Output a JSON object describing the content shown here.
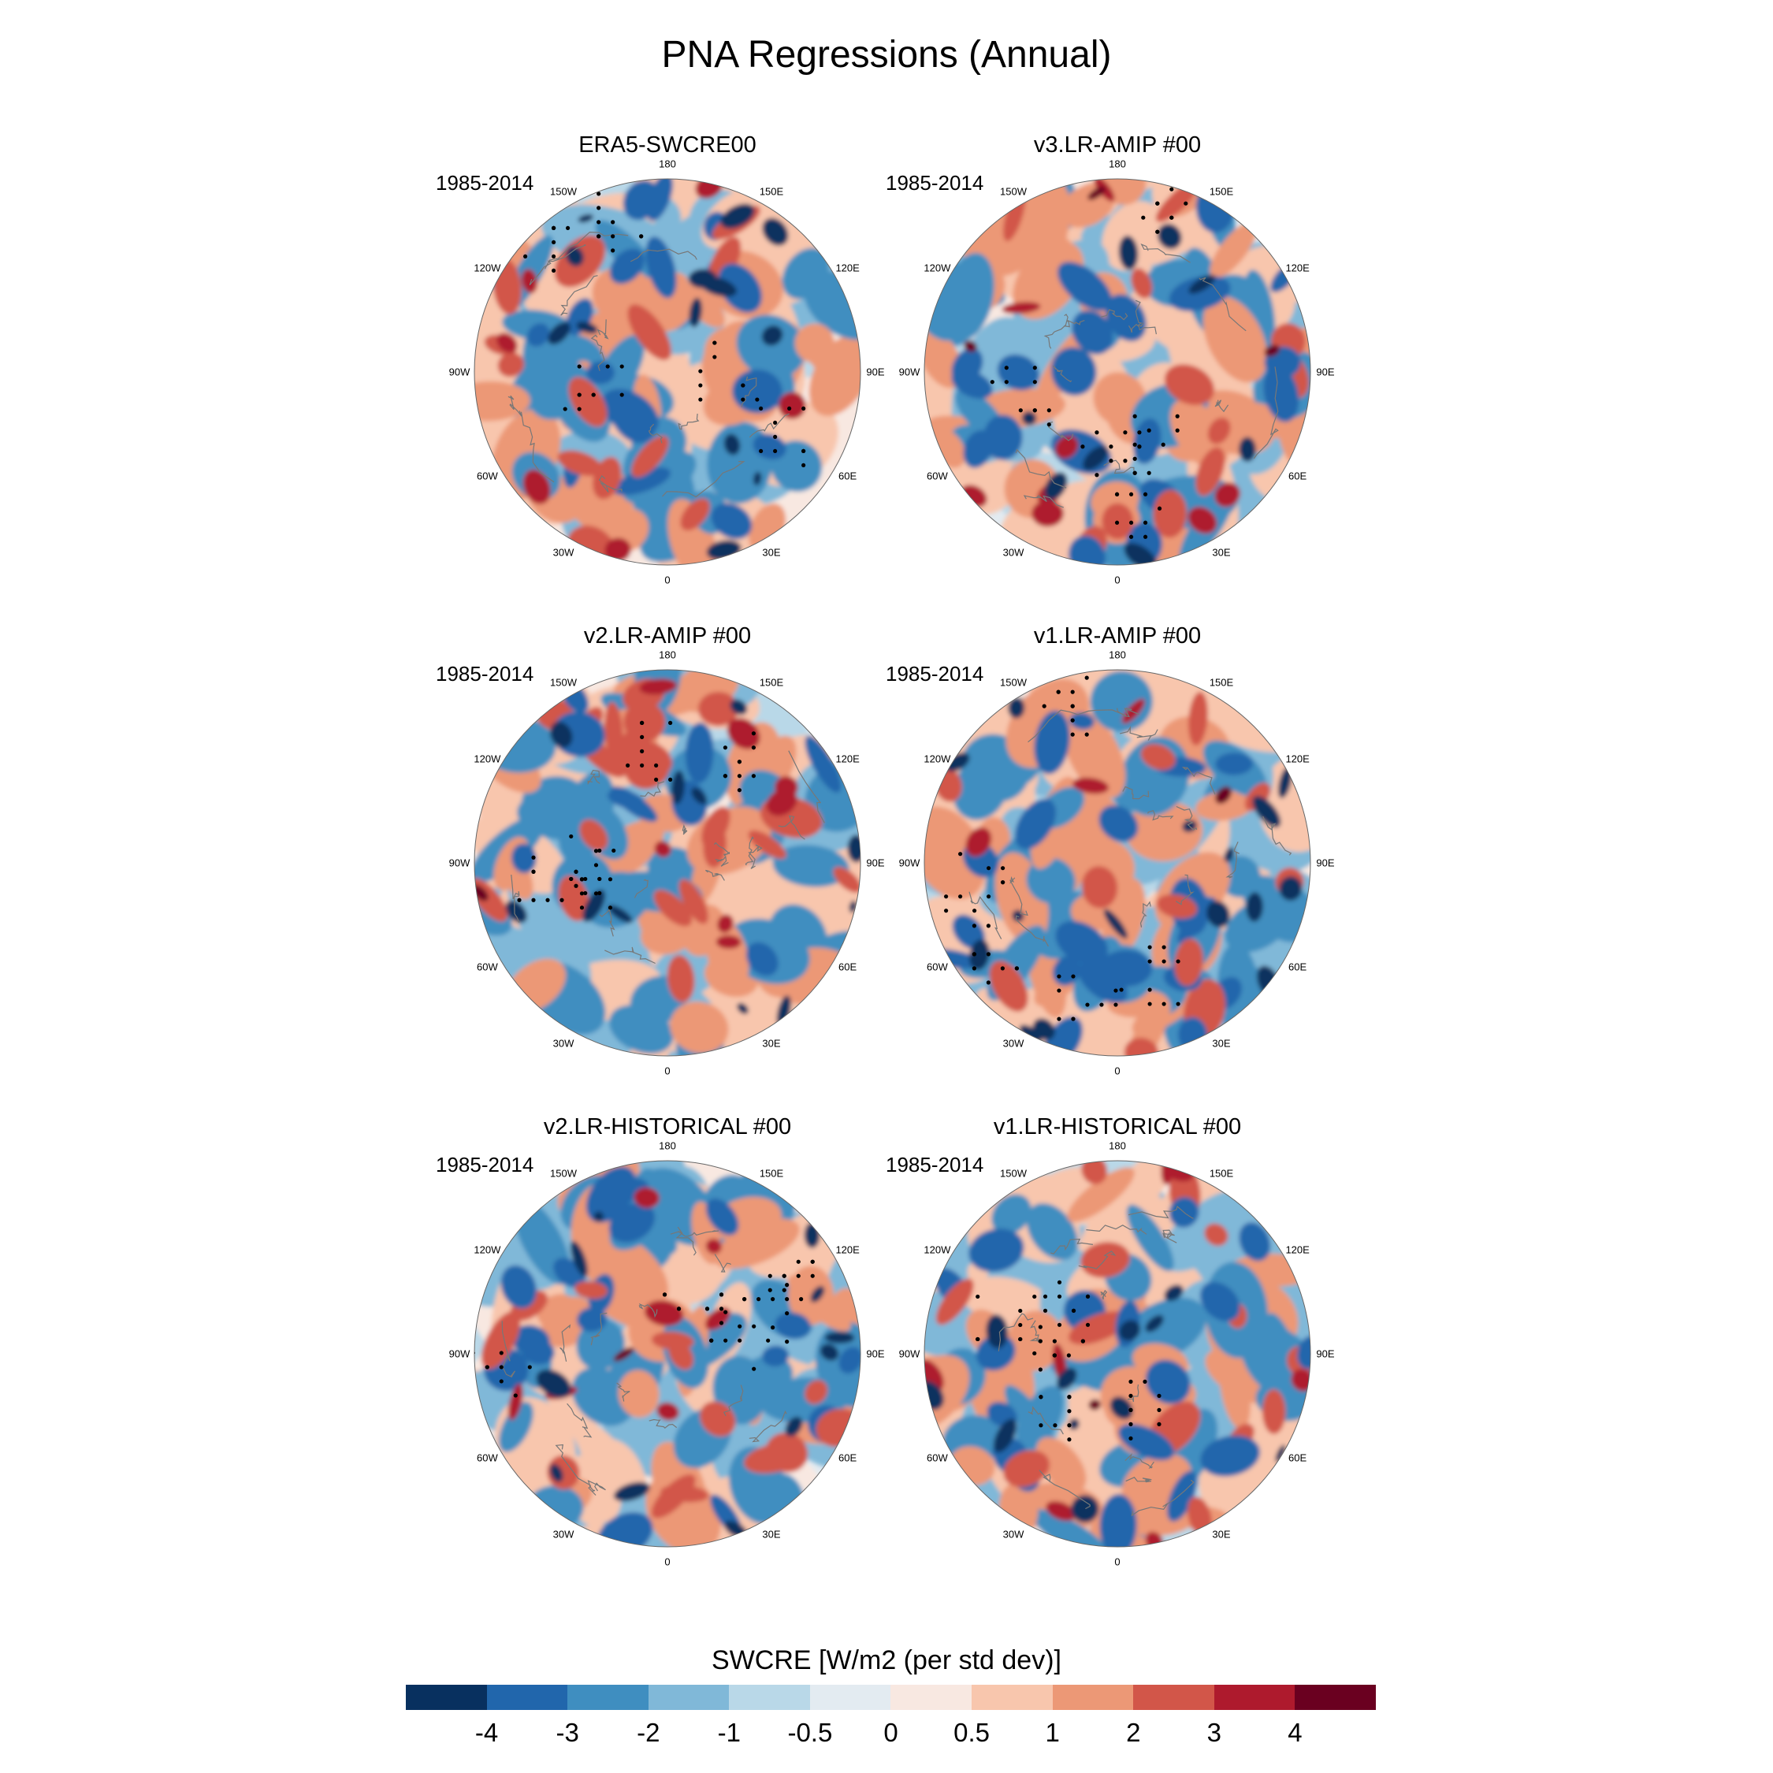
{
  "title": "PNA Regressions (Annual)",
  "chart_data": {
    "type": "heatmap",
    "projection": "north-polar-stereographic",
    "title": "PNA Regressions (Annual)",
    "panels": [
      {
        "title": "ERA5-SWCRE00",
        "period": "1985-2014"
      },
      {
        "title": "v3.LR-AMIP  #00",
        "period": "1985-2014"
      },
      {
        "title": "v2.LR-AMIP  #00",
        "period": "1985-2014"
      },
      {
        "title": "v1.LR-AMIP  #00",
        "period": "1985-2014"
      },
      {
        "title": "v2.LR-HISTORICAL  #00",
        "period": "1985-2014"
      },
      {
        "title": "v1.LR-HISTORICAL  #00",
        "period": "1985-2014"
      }
    ],
    "lon_labels": [
      "180",
      "150W",
      "150E",
      "120W",
      "120E",
      "90W",
      "90E",
      "60W",
      "60E",
      "30W",
      "30E",
      "0"
    ],
    "colorbar": {
      "label": "SWCRE [W/m2 (per std dev)]",
      "levels": [
        "-4",
        "-3",
        "-2",
        "-1",
        "-0.5",
        "0",
        "0.5",
        "1",
        "2",
        "3",
        "4"
      ],
      "colors": [
        "#08305f",
        "#2166ac",
        "#3f8ec0",
        "#80b8d8",
        "#b9d8e8",
        "#e3ebf1",
        "#f8e8e1",
        "#f8c6ad",
        "#ec9876",
        "#d25649",
        "#ae1a2d",
        "#6a0020"
      ]
    }
  }
}
